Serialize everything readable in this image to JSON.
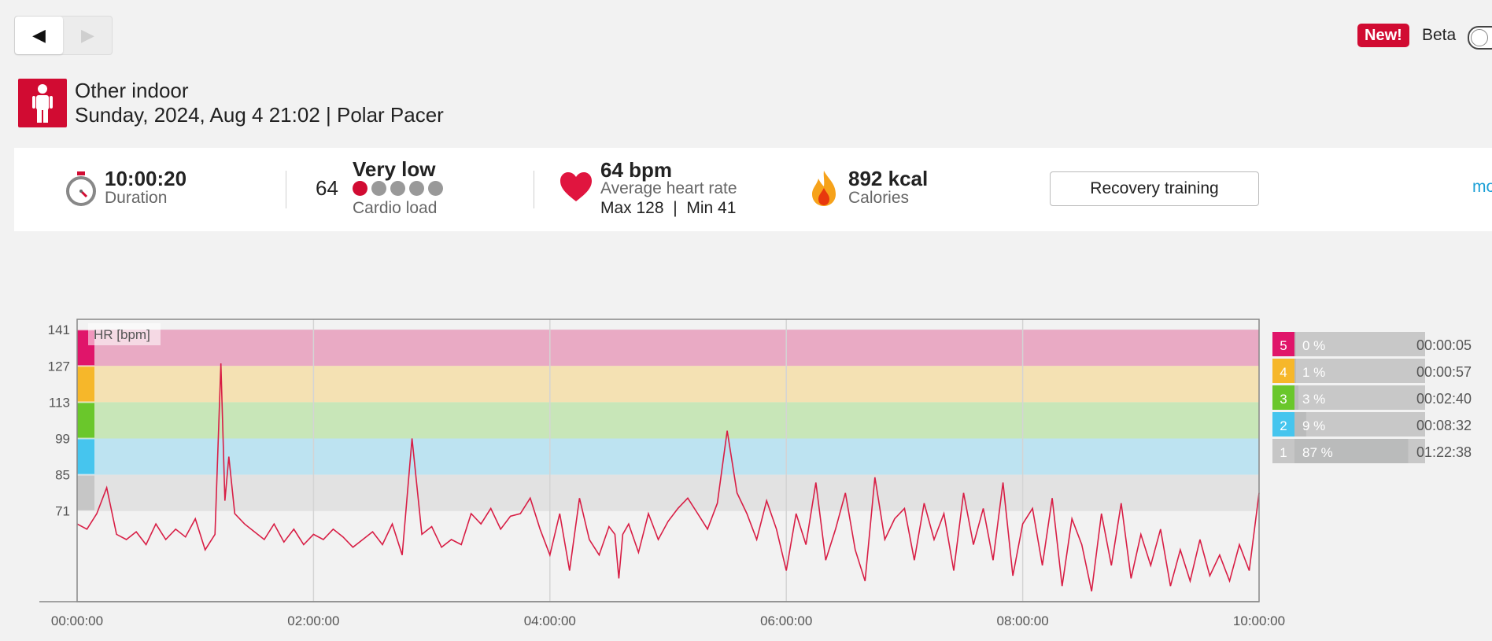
{
  "nav": {
    "prev_icon": "◀",
    "next_icon": "▶"
  },
  "header": {
    "new_badge": "New!",
    "beta_label": "Beta"
  },
  "session": {
    "sport": "Other indoor",
    "date_device": "Sunday, 2024, Aug 4 21:02 | Polar Pacer"
  },
  "stats": {
    "duration_value": "10:00:20",
    "duration_label": "Duration",
    "cardio_number": "64",
    "cardio_level": "Very low",
    "cardio_label": "Cardio load",
    "cardio_dots_filled": 1,
    "cardio_dots_total": 5,
    "hr_avg": "64 bpm",
    "hr_label": "Average heart rate",
    "hr_max": "Max 128",
    "hr_sep": "|",
    "hr_min": "Min 41",
    "calories_value": "892 kcal",
    "calories_label": "Calories",
    "benefit_button": "Recovery training",
    "more_link": "mo"
  },
  "colors": {
    "accent": "#d10b32",
    "zone5": "#e0156a",
    "zone4": "#f6b72a",
    "zone3": "#6ac72b",
    "zone2": "#46c5ee",
    "zone1": "#c6c6c6",
    "line": "#d81e45"
  },
  "chart_data": {
    "type": "line",
    "title": "",
    "series_label": "HR [bpm]",
    "xlabel": "",
    "ylabel": "HR [bpm]",
    "x_ticks": [
      "00:00:00",
      "02:00:00",
      "04:00:00",
      "06:00:00",
      "08:00:00",
      "10:00:00"
    ],
    "y_ticks": [
      141,
      127,
      113,
      99,
      85,
      71
    ],
    "ylim": [
      36,
      145
    ],
    "xlim_minutes": [
      0,
      600
    ],
    "grid": true,
    "zones": [
      {
        "zone": 5,
        "from": 127,
        "to": 141,
        "color": "#e9aac4"
      },
      {
        "zone": 4,
        "from": 113,
        "to": 127,
        "color": "#f4e1b3"
      },
      {
        "zone": 3,
        "from": 99,
        "to": 113,
        "color": "#c8e6b8"
      },
      {
        "zone": 2,
        "from": 85,
        "to": 99,
        "color": "#bde3f1"
      },
      {
        "zone": 1,
        "from": 71,
        "to": 85,
        "color": "#e2e2e2"
      }
    ],
    "series": [
      {
        "x": [
          0,
          5,
          10,
          15,
          20,
          25,
          30,
          35,
          40,
          45,
          50,
          55,
          60,
          65,
          70,
          73,
          75,
          77,
          80,
          85,
          90,
          95,
          100,
          105,
          110,
          115,
          120,
          125,
          130,
          135,
          140,
          145,
          150,
          155,
          160,
          165,
          170,
          175,
          180,
          185,
          190,
          195,
          200,
          205,
          210,
          215,
          220,
          225,
          230,
          235,
          240,
          245,
          250,
          255,
          260,
          265,
          270,
          273,
          275,
          277,
          280,
          285,
          290,
          295,
          300,
          305,
          310,
          315,
          320,
          325,
          330,
          335,
          340,
          345,
          350,
          355,
          360,
          365,
          370,
          375,
          380,
          385,
          390,
          395,
          400,
          405,
          410,
          415,
          420,
          425,
          430,
          435,
          440,
          445,
          450,
          455,
          460,
          465,
          470,
          475,
          480,
          485,
          490,
          495,
          500,
          505,
          510,
          515,
          520,
          525,
          530,
          535,
          540,
          545,
          550,
          555,
          560,
          565,
          570,
          575,
          580,
          585,
          590,
          595,
          600
        ],
        "y": [
          66,
          64,
          70,
          80,
          62,
          60,
          63,
          58,
          66,
          60,
          64,
          61,
          68,
          56,
          62,
          128,
          75,
          92,
          70,
          66,
          63,
          60,
          66,
          59,
          64,
          58,
          62,
          60,
          64,
          61,
          57,
          60,
          63,
          58,
          66,
          54,
          99,
          62,
          65,
          57,
          60,
          58,
          70,
          66,
          72,
          64,
          69,
          70,
          76,
          64,
          54,
          70,
          48,
          76,
          60,
          54,
          65,
          62,
          45,
          62,
          66,
          55,
          70,
          60,
          67,
          72,
          76,
          70,
          64,
          74,
          102,
          78,
          70,
          60,
          75,
          64,
          48,
          70,
          58,
          82,
          52,
          64,
          78,
          56,
          44,
          84,
          60,
          68,
          72,
          52,
          74,
          60,
          70,
          48,
          78,
          58,
          72,
          52,
          82,
          46,
          66,
          72,
          50,
          76,
          42,
          68,
          58,
          40,
          70,
          50,
          74,
          45,
          62,
          50,
          64,
          42,
          56,
          44,
          60,
          46,
          54,
          44,
          58,
          48,
          78
        ]
      }
    ]
  },
  "zones_summary": [
    {
      "zone": "5",
      "percent": "0 %",
      "time": "00:00:05",
      "fraction": 0.0
    },
    {
      "zone": "4",
      "percent": "1 %",
      "time": "00:00:57",
      "fraction": 0.01
    },
    {
      "zone": "3",
      "percent": "3 %",
      "time": "00:02:40",
      "fraction": 0.03
    },
    {
      "zone": "2",
      "percent": "9 %",
      "time": "00:08:32",
      "fraction": 0.09
    },
    {
      "zone": "1",
      "percent": "87 %",
      "time": "01:22:38",
      "fraction": 0.87
    }
  ]
}
